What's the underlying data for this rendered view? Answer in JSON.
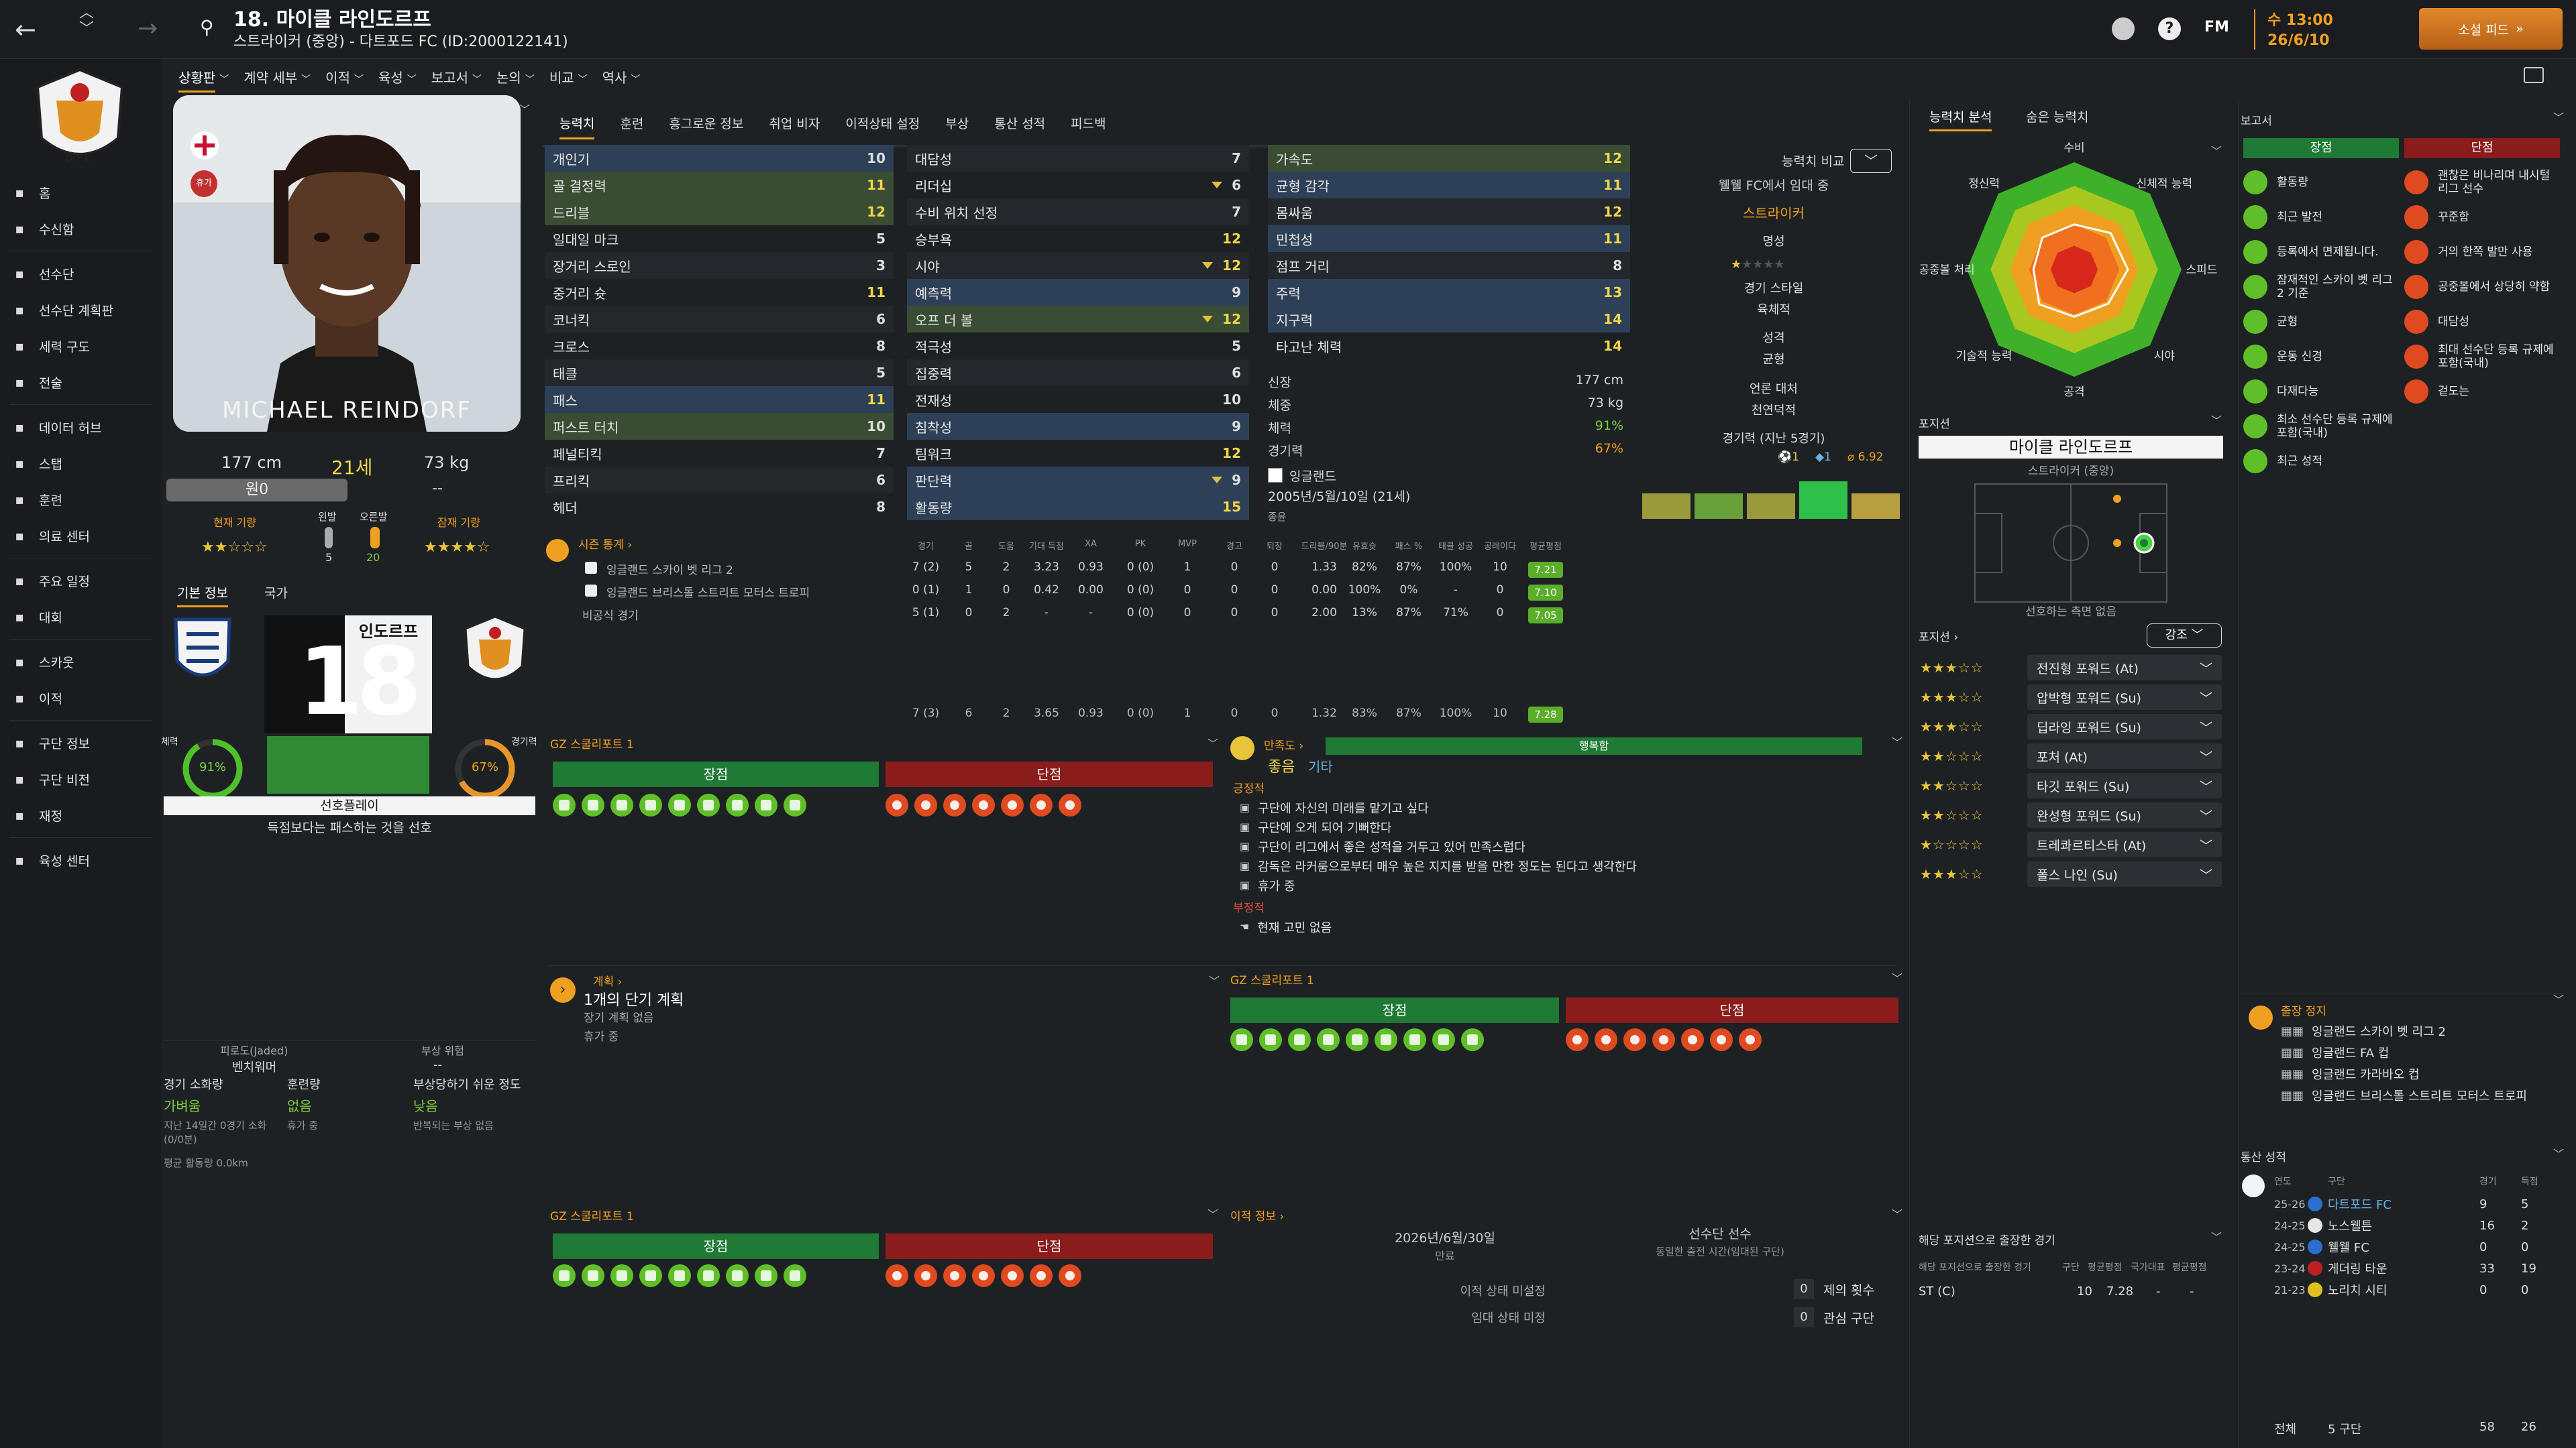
{
  "topbar": {
    "player_number_name": "18. 마이클 라인도르프",
    "player_subtitle": "스트라이커 (중앙) - 다트포드 FC (ID:2000122141)",
    "fm_label": "FM",
    "day": "수 13:00",
    "date": "26/6/10",
    "social_feed": "소셜 피드"
  },
  "sidebar": {
    "items": [
      {
        "label": "홈",
        "icon": "home-icon"
      },
      {
        "label": "수신함",
        "icon": "inbox-icon"
      },
      {
        "label": "선수단",
        "icon": "squad-icon"
      },
      {
        "label": "선수단 계획판",
        "icon": "planner-icon"
      },
      {
        "label": "세력 구도",
        "icon": "dynamics-icon"
      },
      {
        "label": "전술",
        "icon": "tactics-icon"
      },
      {
        "label": "데이터 허브",
        "icon": "data-hub-icon"
      },
      {
        "label": "스탭",
        "icon": "staff-icon"
      },
      {
        "label": "훈련",
        "icon": "training-icon"
      },
      {
        "label": "의료 센터",
        "icon": "medical-icon"
      },
      {
        "label": "주요 일정",
        "icon": "calendar-icon"
      },
      {
        "label": "대회",
        "icon": "trophy-icon"
      },
      {
        "label": "스카웃",
        "icon": "scout-icon"
      },
      {
        "label": "이적",
        "icon": "transfer-icon"
      },
      {
        "label": "구단 정보",
        "icon": "club-info-icon"
      },
      {
        "label": "구단 비전",
        "icon": "club-vision-icon"
      },
      {
        "label": "재정",
        "icon": "finance-icon"
      },
      {
        "label": "육성 센터",
        "icon": "development-icon"
      }
    ]
  },
  "subnav": [
    "상황판",
    "계약 세부",
    "이적",
    "육성",
    "보고서",
    "논의",
    "비교",
    "역사"
  ],
  "profile": {
    "nameplate": "MICHAEL REINDORF",
    "height": "177 cm",
    "age": "21세",
    "weight": "73 kg",
    "foot_label": "원0",
    "dash": "--",
    "current_ability_label": "현재 기량",
    "left_foot_label": "왼발",
    "right_foot_label": "오른발",
    "left_foot_val": "5",
    "right_foot_val": "20",
    "potential_label": "잠재 기량",
    "loan_badge": "휴가",
    "ca_stars": "★★☆☆☆",
    "pa_stars": "★★★★☆"
  },
  "basic_info": {
    "tab1": "기본 정보",
    "tab2": "국가",
    "shirt_name": "인도르프",
    "shirt_number": "18",
    "condition_label": "체력",
    "condition": "91%",
    "sharpness_label": "경기력",
    "sharpness": "67%",
    "playstyle": "선호플레이",
    "playstyle_desc": "득점보다는 패스하는 것을 선호"
  },
  "fatigue": {
    "left_label": "피로도(Jaded)",
    "left_val": "벤치워머",
    "right_label": "부상 위험",
    "right_val": "--",
    "c1_label": "경기 소화량",
    "c1_val": "가벼움",
    "c2_label": "훈련량",
    "c2_val": "없음",
    "c3_label": "부상당하기 쉬운 정도",
    "c3_val": "낮음",
    "c1_desc": "지난 14일간 0경기 소화(0/0분)",
    "c2_desc": "휴가 중",
    "c3_desc": "반복되는 부상 없음",
    "avg": "평균 활동량 0.0km"
  },
  "attr_tabs": [
    "능력치",
    "훈련",
    "흥그로운 정보",
    "취업 비자",
    "이적상태 설정",
    "부상",
    "통산 성적",
    "피드백"
  ],
  "attributes": {
    "technical": [
      {
        "name": "개인기",
        "val": "10",
        "hl": "blue"
      },
      {
        "name": "골 결정력",
        "val": "11",
        "hl": "green"
      },
      {
        "name": "드리블",
        "val": "12",
        "hl": "green"
      },
      {
        "name": "일대일 마크",
        "val": "5",
        "hl": ""
      },
      {
        "name": "장거리 스로인",
        "val": "3",
        "hl": ""
      },
      {
        "name": "중거리 슛",
        "val": "11",
        "hl": ""
      },
      {
        "name": "코너킥",
        "val": "6",
        "hl": ""
      },
      {
        "name": "크로스",
        "val": "8",
        "hl": ""
      },
      {
        "name": "태클",
        "val": "5",
        "hl": ""
      },
      {
        "name": "패스",
        "val": "11",
        "hl": "blue"
      },
      {
        "name": "퍼스트 터치",
        "val": "10",
        "hl": "green"
      },
      {
        "name": "페널티킥",
        "val": "7",
        "hl": ""
      },
      {
        "name": "프리킥",
        "val": "6",
        "hl": ""
      },
      {
        "name": "헤더",
        "val": "8",
        "hl": ""
      }
    ],
    "mental": [
      {
        "name": "대담성",
        "val": "7",
        "hl": "",
        "tri": false
      },
      {
        "name": "리더십",
        "val": "6",
        "hl": "",
        "tri": true
      },
      {
        "name": "수비 위치 선정",
        "val": "7",
        "hl": "",
        "tri": false
      },
      {
        "name": "승부욕",
        "val": "12",
        "hl": "",
        "tri": false
      },
      {
        "name": "시야",
        "val": "12",
        "hl": "",
        "tri": true
      },
      {
        "name": "예측력",
        "val": "9",
        "hl": "blue",
        "tri": false
      },
      {
        "name": "오프 더 볼",
        "val": "12",
        "hl": "green",
        "tri": true
      },
      {
        "name": "적극성",
        "val": "5",
        "hl": "",
        "tri": false
      },
      {
        "name": "집중력",
        "val": "6",
        "hl": "",
        "tri": false
      },
      {
        "name": "전재성",
        "val": "10",
        "hl": "",
        "tri": false
      },
      {
        "name": "침착성",
        "val": "9",
        "hl": "blue",
        "tri": false
      },
      {
        "name": "팀워크",
        "val": "12",
        "hl": "",
        "tri": false
      },
      {
        "name": "판단력",
        "val": "9",
        "hl": "blue",
        "tri": true
      },
      {
        "name": "활동량",
        "val": "15",
        "hl": "blue",
        "tri": false
      }
    ],
    "physical": [
      {
        "name": "가속도",
        "val": "12",
        "hl": "green"
      },
      {
        "name": "균형 감각",
        "val": "11",
        "hl": "blue"
      },
      {
        "name": "몸싸움",
        "val": "12",
        "hl": ""
      },
      {
        "name": "민첩성",
        "val": "11",
        "hl": "blue"
      },
      {
        "name": "점프 거리",
        "val": "8",
        "hl": ""
      },
      {
        "name": "주력",
        "val": "13",
        "hl": "blue"
      },
      {
        "name": "지구력",
        "val": "14",
        "hl": "blue"
      },
      {
        "name": "타고난 체력",
        "val": "14",
        "hl": ""
      }
    ]
  },
  "physical_info": {
    "height_l": "신장",
    "height": "177 cm",
    "weight_l": "체중",
    "weight": "73 kg",
    "fitness_l": "체력",
    "fitness": "91%",
    "form_l": "경기력",
    "form": "67%",
    "nation": "잉글랜드",
    "dob": "2005년/5월/10일 (21세)",
    "extra": "종윤"
  },
  "compare": {
    "label": "능력치 비교",
    "line1": "웰웰 FC에서 임대 중",
    "line2": "스트라이커",
    "rep_label": "명성",
    "style_label": "경기 스타일",
    "style_val": "육체적",
    "pers_label": "성격",
    "pers_val": "균형",
    "media_label": "언론 대처",
    "media_val": "천연덕적",
    "last5_label": "경기력 (지난 5경기)",
    "goals": "1",
    "assists": "1",
    "avg_rating": "6.92",
    "form_bars": [
      0.55,
      0.55,
      0.55,
      0.8,
      0.55
    ]
  },
  "season_stats": {
    "title": "시즌 통계",
    "headers": [
      "경기",
      "골",
      "도움",
      "기대 득점",
      "XA",
      "PK",
      "MVP",
      "경고",
      "퇴장",
      "드리블/90분",
      "유효슛",
      "패스 %",
      "태클 성공",
      "공레이다",
      "평균평점"
    ],
    "rows": [
      {
        "name": "잉글랜드 스카이 벳 리그 2",
        "vals": [
          "7 (2)",
          "5",
          "2",
          "3.23",
          "0.93",
          "0 (0)",
          "1",
          "0",
          "0",
          "1.33",
          "82%",
          "87%",
          "100%",
          "10",
          "7.21"
        ]
      },
      {
        "name": "잉글랜드 브리스톨 스트리트 모터스 트로피",
        "vals": [
          "0 (1)",
          "1",
          "0",
          "0.42",
          "0.00",
          "0 (0)",
          "0",
          "0",
          "0",
          "0.00",
          "100%",
          "0%",
          "-",
          "0",
          "7.10"
        ]
      },
      {
        "name": "비공식 경기",
        "vals": [
          "5 (1)",
          "0",
          "2",
          "-",
          "-",
          "0 (0)",
          "0",
          "0",
          "0",
          "2.00",
          "13%",
          "87%",
          "71%",
          "0",
          "7.05"
        ]
      }
    ],
    "total": [
      "7 (3)",
      "6",
      "2",
      "3.65",
      "0.93",
      "0 (0)",
      "1",
      "0",
      "0",
      "1.32",
      "83%",
      "87%",
      "100%",
      "10",
      "7.28"
    ]
  },
  "gz_report": {
    "title": "GZ 스쿨리포트 1",
    "strengths": "장점",
    "weaknesses": "단점"
  },
  "morale": {
    "label": "만족도",
    "bar_text": "행복함",
    "level": "좋음",
    "other": "기타",
    "pos_title": "긍정적",
    "pos": [
      "구단에 자신의 미래를 맡기고 싶다",
      "구단에 오게 되어 기뻐한다",
      "구단이 리그에서 좋은 성적을 거두고 있어 만족스럽다",
      "감독은 라커룸으로부터 매우 높은 지지를 받을 만한 정도는 된다고 생각한다",
      "휴가 중"
    ],
    "neg_title": "부정적",
    "neg": [
      "현재 고민 없음"
    ]
  },
  "plans": {
    "title": "계획",
    "main": "1개의 단기 계획",
    "sub1": "장기 계획 없음",
    "sub2": "휴가 중"
  },
  "transfer": {
    "title": "이적 정보",
    "contract_end": "2026년/6월/30일",
    "contract_end_l": "만료",
    "squad_status": "선수단 선수",
    "squad_desc": "동일한 출전 시간(임대된 구단)",
    "status1": "이적 상태 미설정",
    "status2": "임대 상태 미정",
    "offers_n": "0",
    "offers_l": "제의 횟수",
    "interest_n": "0",
    "interest_l": "관심 구단"
  },
  "ability": {
    "tab1": "능력치 분석",
    "tab2": "숨은 능력치",
    "axes": [
      "수비",
      "신체적 능력",
      "스피드",
      "시야",
      "공격",
      "기술적 능력",
      "공중볼 처리",
      "정신력"
    ]
  },
  "position": {
    "label": "포지션",
    "name": "마이클 라인도르프",
    "role": "스트라이커 (중앙)",
    "footer": "선호하는 측면 없음",
    "pos_label": "포지션",
    "filter": "강조"
  },
  "roles": [
    {
      "stars": "★★★☆☆",
      "name": "전진형 포워드 (At)"
    },
    {
      "stars": "★★★☆☆",
      "name": "압박형 포워드 (Su)"
    },
    {
      "stars": "★★★☆☆",
      "name": "딥라잉 포워드 (Su)"
    },
    {
      "stars": "★★☆☆☆",
      "name": "포처 (At)"
    },
    {
      "stars": "★★☆☆☆",
      "name": "타깃 포워드 (Su)"
    },
    {
      "stars": "★★☆☆☆",
      "name": "완성형 포워드 (Su)"
    },
    {
      "stars": "★☆☆☆☆",
      "name": "트레콰르티스타 (At)"
    },
    {
      "stars": "★★★☆☆",
      "name": "폴스 나인 (Su)"
    }
  ],
  "position_history": {
    "title": "해당 포지션으로 출장한 경기",
    "sub": "해당 포지션으로 출장한 경기",
    "h1": "구단",
    "h2": "평균평점",
    "h3": "국가대표",
    "h4": "평균평점",
    "row_pos": "ST (C)",
    "row_apps": "10",
    "row_rating": "7.28",
    "row_int": "-",
    "row_int_r": "-"
  },
  "report": {
    "title": "보고서",
    "strengths": "장점",
    "weaknesses": "단점",
    "s_items": [
      "활동량",
      "최근 발전",
      "등록에서 면제됩니다.",
      "잠재적인 스카이 벳 리그 2 기준",
      "균형",
      "운동 신경",
      "다재다능",
      "최소 선수단 등록 규제에 포함(국내)",
      "최근 성적"
    ],
    "w_items": [
      "괜찮은 비나리며 내시털 리그 선수",
      "꾸준함",
      "거의 한쪽 발만 사용",
      "공중볼에서 상당히 약함",
      "대담성",
      "최대 선수단 등록 규제에 포함(국내)",
      "겉도는"
    ]
  },
  "suspension": {
    "title": "출장 정지",
    "items": [
      "잉글랜드 스카이 벳 리그 2",
      "잉글랜드 FA 컵",
      "잉글랜드 카라바오 컵",
      "잉글랜드 브리스톨 스트리트 모터스 트로피"
    ]
  },
  "career": {
    "title": "통산 성적",
    "h_year": "연도",
    "h_club": "구단",
    "h_apps": "경기",
    "h_goals": "득점",
    "rows": [
      {
        "year": "25-26",
        "club": "다트포드 FC",
        "apps": "9",
        "goals": "5"
      },
      {
        "year": "24-25",
        "club": "노스웰튼",
        "apps": "16",
        "goals": "2"
      },
      {
        "year": "24-25",
        "club": "웰웰 FC",
        "apps": "0",
        "goals": "0"
      },
      {
        "year": "23-24",
        "club": "게더링 타운",
        "apps": "33",
        "goals": "19"
      },
      {
        "year": "21-23",
        "club": "노리치 시티",
        "apps": "0",
        "goals": "0"
      }
    ],
    "total_l": "전체",
    "total_clubs": "5 구단",
    "total_apps": "58",
    "total_goals": "26"
  }
}
